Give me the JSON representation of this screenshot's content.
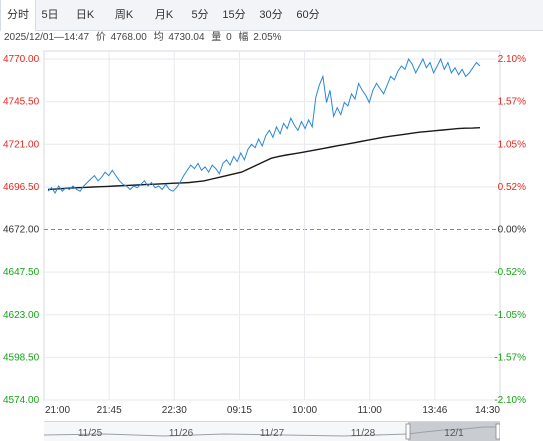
{
  "tabs": [
    "分时",
    "5日",
    "日K",
    "周K",
    "月K",
    "5分",
    "15分",
    "30分",
    "60分"
  ],
  "active_tab": 0,
  "info": {
    "time": "2025/12/01—14:47",
    "price_label": "价",
    "price": "4768.00",
    "avg_label": "均",
    "avg": "4730.04",
    "vol_label": "量",
    "vol": "0",
    "pct_label": "幅",
    "pct": "2.05%"
  },
  "colors": {
    "up": "#e8261c",
    "down": "#17a217",
    "neutral": "#333333",
    "price_line": "#2a87d8",
    "avg_line": "#1a1a1a"
  },
  "chart_data": {
    "type": "line",
    "ylim": [
      4574.0,
      4770.0
    ],
    "base_price": 4672.0,
    "y_ticks": [
      {
        "price": "4770.00",
        "pct": "2.10%",
        "dir": "up"
      },
      {
        "price": "4745.50",
        "pct": "1.57%",
        "dir": "up"
      },
      {
        "price": "4721.00",
        "pct": "1.05%",
        "dir": "up"
      },
      {
        "price": "4696.50",
        "pct": "0.52%",
        "dir": "up"
      },
      {
        "price": "4672.00",
        "pct": "0.00%",
        "dir": "flat"
      },
      {
        "price": "4647.50",
        "pct": "-0.52%",
        "dir": "down"
      },
      {
        "price": "4623.00",
        "pct": "-1.05%",
        "dir": "down"
      },
      {
        "price": "4598.50",
        "pct": "-1.57%",
        "dir": "down"
      },
      {
        "price": "4574.00",
        "pct": "-2.10%",
        "dir": "down"
      }
    ],
    "x_ticks": [
      "21:00",
      "21:45",
      "22:30",
      "09:15",
      "10:00",
      "11:00",
      "13:46",
      "14:30"
    ],
    "nav_dates": [
      "11/25",
      "11/26",
      "11/27",
      "11/28",
      "12/1"
    ],
    "series": [
      {
        "values": [
          4694,
          4696,
          4693,
          4697,
          4694,
          4696,
          4695,
          4697,
          4695,
          4694,
          4697,
          4699,
          4701,
          4703,
          4700,
          4702,
          4705,
          4703,
          4706,
          4703,
          4700,
          4698,
          4697,
          4695,
          4697,
          4696,
          4698,
          4700,
          4697,
          4699,
          4696,
          4697,
          4695,
          4698,
          4695,
          4694,
          4696,
          4699,
          4703,
          4706,
          4709,
          4707,
          4710,
          4706,
          4708,
          4705,
          4709,
          4707,
          4704,
          4710,
          4712,
          4709,
          4714,
          4711,
          4716,
          4712,
          4718,
          4721,
          4719,
          4724,
          4720,
          4726,
          4729,
          4725,
          4731,
          4727,
          4733,
          4730,
          4736,
          4732,
          4729,
          4734,
          4730,
          4735,
          4731,
          4748,
          4755,
          4760,
          4745,
          4752,
          4737,
          4742,
          4738,
          4745,
          4743,
          4750,
          4747,
          4756,
          4752,
          4749,
          4745,
          4752,
          4756,
          4753,
          4750,
          4755,
          4760,
          4758,
          4763,
          4766,
          4764,
          4770,
          4767,
          4762,
          4766,
          4770,
          4765,
          4768,
          4762,
          4766,
          4770,
          4764,
          4768,
          4762,
          4765,
          4761,
          4764,
          4760,
          4762,
          4765,
          4768,
          4766
        ]
      },
      {
        "values": [
          4695.0,
          4695.2,
          4695.5,
          4695.8,
          4696.0,
          4696.2,
          4696.4,
          4696.6,
          4696.8,
          4697.0,
          4697.2,
          4697.4,
          4697.6,
          4697.8,
          4698.0,
          4698.2,
          4698.4,
          4698.6,
          4698.8,
          4699.0,
          4699.5,
          4700.0,
          4701.0,
          4702.0,
          4703.0,
          4704.0,
          4705.0,
          4707.0,
          4709.0,
          4711.0,
          4713.0,
          4714.0,
          4714.8,
          4715.5,
          4716.2,
          4717.0,
          4717.8,
          4718.6,
          4719.4,
          4720.2,
          4721.0,
          4721.8,
          4722.6,
          4723.4,
          4724.2,
          4725.0,
          4725.6,
          4726.2,
          4726.8,
          4727.4,
          4728.0,
          4728.4,
          4728.8,
          4729.2,
          4729.6,
          4730.0,
          4730.2,
          4730.3,
          4730.5
        ]
      }
    ]
  }
}
